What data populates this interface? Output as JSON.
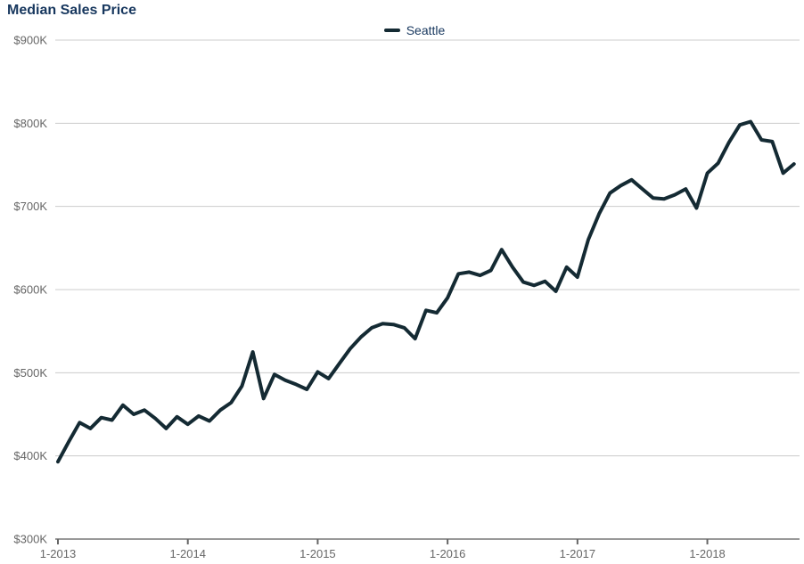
{
  "chart_data": {
    "type": "line",
    "title": "Median Sales Price",
    "legend": {
      "position": "top-center",
      "entries": [
        "Seattle"
      ]
    },
    "grid": "horizontal",
    "x_axis": {
      "tick_labels": [
        "1-2013",
        "1-2014",
        "1-2015",
        "1-2016",
        "1-2017",
        "1-2018"
      ],
      "tick_month_indices": [
        0,
        12,
        24,
        36,
        48,
        60
      ]
    },
    "y_axis": {
      "tick_labels": [
        "$300K",
        "$400K",
        "$500K",
        "$600K",
        "$700K",
        "$800K",
        "$900K"
      ],
      "tick_values": [
        300,
        400,
        500,
        600,
        700,
        800,
        900
      ],
      "range_thousands": [
        300,
        900
      ]
    },
    "series": [
      {
        "name": "Seattle",
        "color": "#142a33",
        "unit": "$K",
        "x": [
          "1-2013",
          "2-2013",
          "3-2013",
          "4-2013",
          "5-2013",
          "6-2013",
          "7-2013",
          "8-2013",
          "9-2013",
          "10-2013",
          "11-2013",
          "12-2013",
          "1-2014",
          "2-2014",
          "3-2014",
          "4-2014",
          "5-2014",
          "6-2014",
          "7-2014",
          "8-2014",
          "9-2014",
          "10-2014",
          "11-2014",
          "12-2014",
          "1-2015",
          "2-2015",
          "3-2015",
          "4-2015",
          "5-2015",
          "6-2015",
          "7-2015",
          "8-2015",
          "9-2015",
          "10-2015",
          "11-2015",
          "12-2015",
          "1-2016",
          "2-2016",
          "3-2016",
          "4-2016",
          "5-2016",
          "6-2016",
          "7-2016",
          "8-2016",
          "9-2016",
          "10-2016",
          "11-2016",
          "12-2016",
          "1-2017",
          "2-2017",
          "3-2017",
          "4-2017",
          "5-2017",
          "6-2017",
          "7-2017",
          "8-2017",
          "9-2017",
          "10-2017",
          "11-2017",
          "12-2017",
          "1-2018",
          "2-2018",
          "3-2018",
          "4-2018",
          "5-2018",
          "6-2018",
          "7-2018",
          "8-2018",
          "9-2018"
        ],
        "values": [
          393,
          417,
          440,
          433,
          446,
          443,
          461,
          450,
          455,
          445,
          433,
          447,
          438,
          448,
          442,
          455,
          464,
          484,
          525,
          469,
          498,
          491,
          486,
          480,
          501,
          493,
          511,
          529,
          543,
          554,
          559,
          558,
          554,
          541,
          575,
          572,
          590,
          619,
          621,
          617,
          623,
          648,
          627,
          609,
          605,
          610,
          598,
          627,
          615,
          660,
          691,
          716,
          725,
          732,
          721,
          710,
          709,
          714,
          721,
          698,
          740,
          752,
          777,
          798,
          802,
          780,
          778,
          740,
          751
        ]
      }
    ]
  },
  "colors": {
    "title_text": "#17375e",
    "legend_text": "#17375e",
    "axis_label_text": "#666666",
    "gridline": "#cccccc",
    "axis_line": "#999999",
    "tick_mark": "#666666",
    "series_seattle": "#142a33"
  }
}
